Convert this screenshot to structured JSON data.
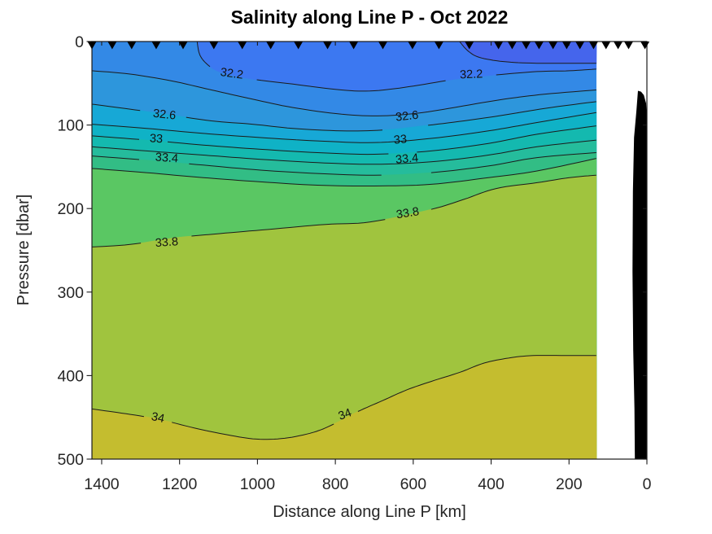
{
  "figure": {
    "title": "Salinity along Line P - Oct 2022",
    "xlabel": "Distance along Line P [km]",
    "ylabel": "Pressure [dbar]"
  },
  "chart_data": {
    "type": "filled-contour",
    "title": "Salinity along Line P - Oct 2022",
    "xlabel": "Distance along Line P [km]",
    "ylabel": "Pressure [dbar]",
    "x_axis": {
      "range": [
        0,
        1425
      ],
      "reversed": true,
      "ticks": [
        1400,
        1200,
        1000,
        800,
        600,
        400,
        200,
        0
      ]
    },
    "y_axis": {
      "range": [
        0,
        500
      ],
      "inverted": true,
      "ticks": [
        0,
        100,
        200,
        300,
        400,
        500
      ]
    },
    "data_extent_km": [
      130,
      1425
    ],
    "grid": false,
    "contour_interval": 0.2,
    "labeled_levels": [
      32.2,
      32.6,
      33,
      33.4,
      33.8,
      34
    ],
    "colors": {
      "contour_line": "#1b1b1b",
      "axis": "#1a1a1a",
      "tick_label": "#262626",
      "station_marker": "#000000",
      "bathymetry": "#000000",
      "bands": {
        "below_32.0": "#4565EC",
        "32.0-32.2": "#3C78F1",
        "32.2-32.4": "#3389E6",
        "32.4-32.6": "#2D96DC",
        "32.6-32.8": "#17A8D6",
        "32.8-33.0": "#0FB2C6",
        "33.0-33.2": "#14B9AF",
        "33.2-33.4": "#25BC9C",
        "33.4-33.6": "#32BD85",
        "33.6-33.8": "#5AC763",
        "33.8-34.0": "#A0C43E",
        "above_34.0": "#C4BD2F"
      }
    },
    "surface_contours": [
      {
        "level": 32.2,
        "fill_right": "#3C78F1",
        "points": [
          [
            1155,
            0
          ],
          [
            1147,
            17
          ],
          [
            1122,
            30
          ],
          [
            1086,
            38
          ],
          [
            1013,
            45
          ],
          [
            909,
            51
          ],
          [
            784,
            58
          ],
          [
            700,
            59
          ],
          [
            595,
            53
          ],
          [
            491,
            45
          ],
          [
            387,
            40
          ],
          [
            282,
            36
          ],
          [
            199,
            35
          ],
          [
            130,
            33
          ]
        ],
        "labels": []
      },
      {
        "level": 32.0,
        "fill_right": "#4565EC",
        "points": [
          [
            481,
            0
          ],
          [
            460,
            11
          ],
          [
            430,
            19
          ],
          [
            368,
            24
          ],
          [
            282,
            26
          ],
          [
            130,
            26
          ]
        ],
        "labels": []
      }
    ],
    "contours": [
      {
        "level": 32.4,
        "fill_below": "#2D96DC",
        "points": [
          [
            1425,
            35
          ],
          [
            1327,
            39
          ],
          [
            1222,
            47
          ],
          [
            1118,
            58
          ],
          [
            1013,
            69
          ],
          [
            909,
            79
          ],
          [
            784,
            87
          ],
          [
            679,
            89
          ],
          [
            575,
            85
          ],
          [
            470,
            77
          ],
          [
            366,
            69
          ],
          [
            261,
            63
          ],
          [
            130,
            58
          ]
        ],
        "labels": []
      },
      {
        "level": 32.6,
        "fill_below": "#17A8D6",
        "points": [
          [
            1425,
            75
          ],
          [
            1327,
            81
          ],
          [
            1222,
            88
          ],
          [
            1118,
            95
          ],
          [
            1013,
            99
          ],
          [
            909,
            104
          ],
          [
            784,
            107
          ],
          [
            679,
            106
          ],
          [
            575,
            101
          ],
          [
            470,
            95
          ],
          [
            366,
            88
          ],
          [
            261,
            80
          ],
          [
            130,
            72
          ]
        ],
        "labels": [
          {
            "text": "32.6",
            "km": 1239,
            "p": 88,
            "rot": 6
          },
          {
            "text": "32.6",
            "km": 616,
            "p": 90,
            "rot": -6
          }
        ]
      },
      {
        "level": 32.8,
        "fill_below": "#0FB2C6",
        "points": [
          [
            1425,
            99
          ],
          [
            1285,
            104
          ],
          [
            1139,
            110
          ],
          [
            992,
            115
          ],
          [
            846,
            119
          ],
          [
            700,
            121
          ],
          [
            554,
            116
          ],
          [
            407,
            107
          ],
          [
            282,
            97
          ],
          [
            130,
            85
          ]
        ],
        "labels": []
      },
      {
        "level": 33.0,
        "fill_below": "#14B9AF",
        "points": [
          [
            1425,
            113
          ],
          [
            1285,
            118
          ],
          [
            1139,
            124
          ],
          [
            992,
            129
          ],
          [
            846,
            133
          ],
          [
            700,
            135
          ],
          [
            554,
            131
          ],
          [
            407,
            122
          ],
          [
            282,
            111
          ],
          [
            130,
            101
          ]
        ],
        "labels": [
          {
            "text": "33",
            "km": 1260,
            "p": 117,
            "rot": 3
          },
          {
            "text": "33",
            "km": 633,
            "p": 118,
            "rot": -5
          }
        ]
      },
      {
        "level": 33.2,
        "fill_below": "#25BC9C",
        "points": [
          [
            1425,
            126
          ],
          [
            1285,
            131
          ],
          [
            1139,
            136
          ],
          [
            992,
            141
          ],
          [
            846,
            145
          ],
          [
            700,
            147
          ],
          [
            554,
            144
          ],
          [
            407,
            136
          ],
          [
            282,
            126
          ],
          [
            130,
            118
          ]
        ],
        "labels": []
      },
      {
        "level": 33.4,
        "fill_below": "#32BD85",
        "points": [
          [
            1425,
            137
          ],
          [
            1285,
            142
          ],
          [
            1139,
            148
          ],
          [
            992,
            154
          ],
          [
            846,
            158
          ],
          [
            700,
            160
          ],
          [
            554,
            157
          ],
          [
            407,
            149
          ],
          [
            282,
            139
          ],
          [
            130,
            133
          ]
        ],
        "labels": [
          {
            "text": "33.4",
            "km": 1233,
            "p": 140,
            "rot": 4
          },
          {
            "text": "33.4",
            "km": 616,
            "p": 141,
            "rot": -5
          }
        ]
      },
      {
        "level": 33.6,
        "fill_below": "#5AC763",
        "points": [
          [
            1425,
            152
          ],
          [
            1285,
            157
          ],
          [
            1139,
            163
          ],
          [
            992,
            168
          ],
          [
            846,
            172
          ],
          [
            700,
            173
          ],
          [
            554,
            171
          ],
          [
            407,
            163
          ],
          [
            282,
            155
          ],
          [
            130,
            140
          ]
        ],
        "labels": []
      },
      {
        "level": 33.8,
        "fill_below": "#A0C43E",
        "points": [
          [
            1425,
            246
          ],
          [
            1327,
            243
          ],
          [
            1212,
            235
          ],
          [
            1097,
            230
          ],
          [
            972,
            225
          ],
          [
            825,
            219
          ],
          [
            710,
            216
          ],
          [
            554,
            201
          ],
          [
            470,
            189
          ],
          [
            387,
            176
          ],
          [
            282,
            169
          ],
          [
            199,
            163
          ],
          [
            130,
            160
          ]
        ],
        "labels": [
          {
            "text": "33.8",
            "km": 1233,
            "p": 241,
            "rot": -4
          },
          {
            "text": "33.8",
            "km": 614,
            "p": 206,
            "rot": -9
          }
        ]
      },
      {
        "level": 34.0,
        "fill_below": "#C4BD2F",
        "points": [
          [
            1425,
            440
          ],
          [
            1348,
            445
          ],
          [
            1256,
            452
          ],
          [
            1160,
            463
          ],
          [
            1076,
            471
          ],
          [
            1003,
            476
          ],
          [
            930,
            475
          ],
          [
            857,
            468
          ],
          [
            804,
            458
          ],
          [
            742,
            443
          ],
          [
            679,
            430
          ],
          [
            616,
            417
          ],
          [
            554,
            407
          ],
          [
            480,
            396
          ],
          [
            418,
            385
          ],
          [
            355,
            379
          ],
          [
            292,
            376
          ],
          [
            199,
            376
          ],
          [
            130,
            376
          ]
        ],
        "labels": [
          {
            "text": "34",
            "km": 1256,
            "p": 451,
            "rot": 12
          },
          {
            "text": "34",
            "km": 775,
            "p": 447,
            "rot": -20
          }
        ]
      }
    ],
    "surface_contour_labels": [
      {
        "text": "32.2",
        "km": 1066,
        "p": 39,
        "rot": 8
      },
      {
        "text": "32.2",
        "km": 451,
        "p": 40,
        "rot": -2
      }
    ],
    "stations_km": [
      1425,
      1373,
      1323,
      1260,
      1191,
      1112,
      1039,
      966,
      895,
      820,
      753,
      678,
      602,
      534,
      456,
      381,
      346,
      310,
      277,
      241,
      206,
      172,
      137,
      105,
      74,
      47,
      5
    ],
    "bathymetry_points": [
      [
        23,
        59
      ],
      [
        27,
        83
      ],
      [
        33,
        115
      ],
      [
        36,
        180
      ],
      [
        37,
        275
      ],
      [
        35,
        370
      ],
      [
        32,
        440
      ],
      [
        31,
        500
      ],
      [
        0,
        500
      ],
      [
        0,
        90
      ],
      [
        2,
        74
      ],
      [
        8,
        64
      ],
      [
        15,
        60
      ]
    ]
  }
}
